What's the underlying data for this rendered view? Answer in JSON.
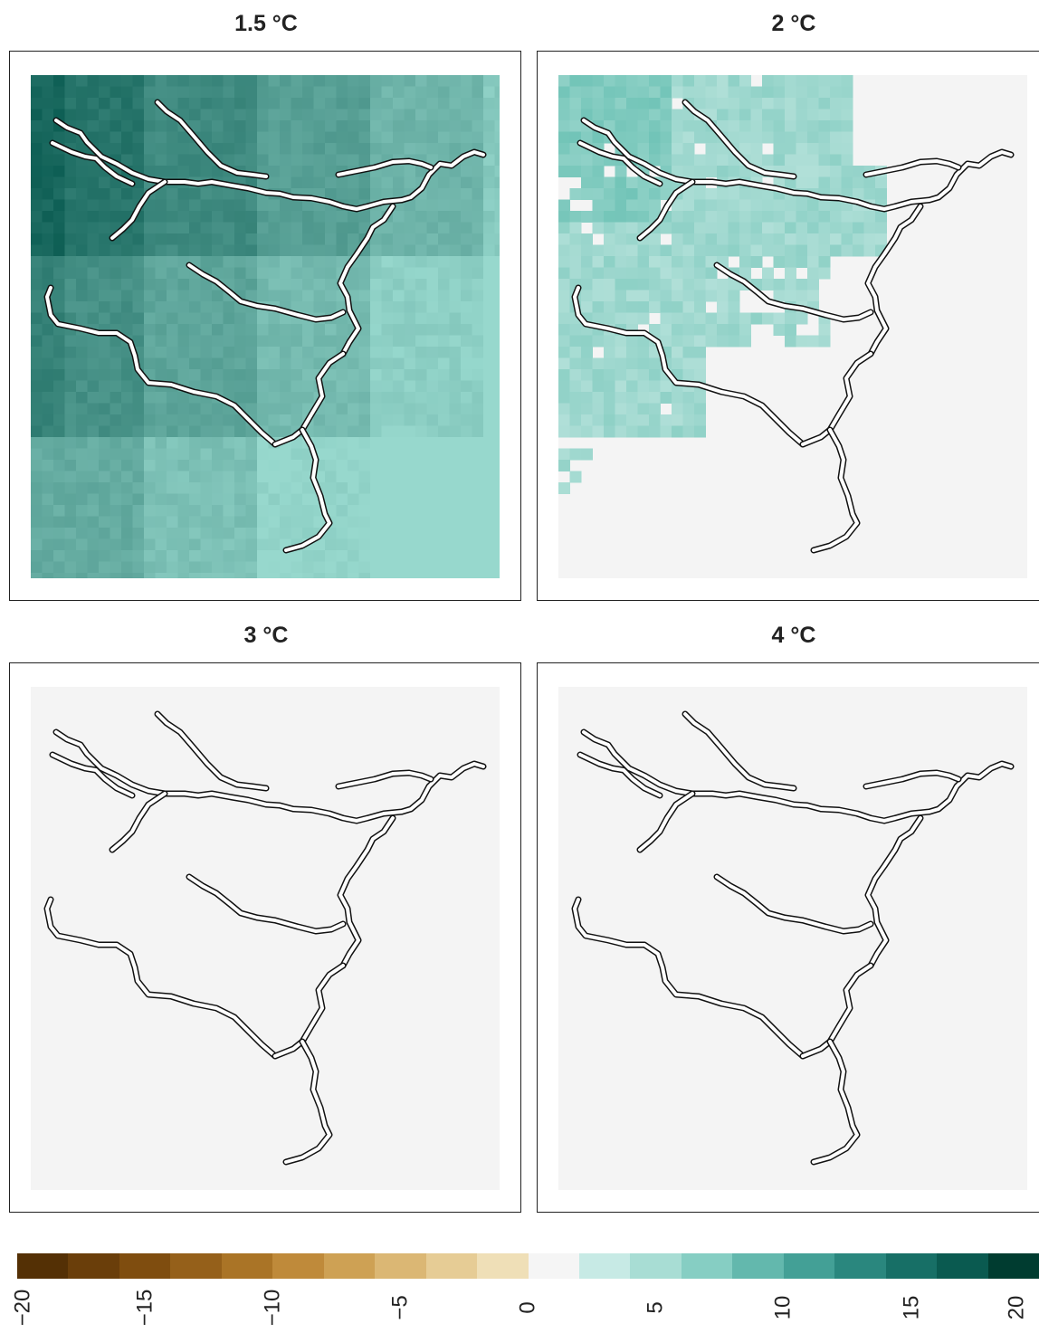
{
  "panels": [
    {
      "title": "1.5 °C",
      "fill": "strong"
    },
    {
      "title": "2 °C",
      "fill": "partial"
    },
    {
      "title": "3 °C",
      "fill": "none"
    },
    {
      "title": "4 °C",
      "fill": "none"
    }
  ],
  "legend": {
    "min": -20,
    "max": 20,
    "tick_labels": [
      "−20",
      "−15",
      "−10",
      "−5",
      "0",
      "5",
      "10",
      "15",
      "20"
    ],
    "colors": [
      "#543005",
      "#6a3e0a",
      "#7f4d0f",
      "#95601a",
      "#aa7426",
      "#bf8a3a",
      "#cea154",
      "#dbb774",
      "#e6cc95",
      "#efdfb7",
      "#f5f5f5",
      "#c7eae5",
      "#a8ddd4",
      "#86cec3",
      "#63b8ad",
      "#43a096",
      "#2a877e",
      "#176f66",
      "#0a5a50",
      "#003c30"
    ]
  },
  "colors": {
    "no_change": "#f4f4f4",
    "river_outline": "#111111"
  }
}
